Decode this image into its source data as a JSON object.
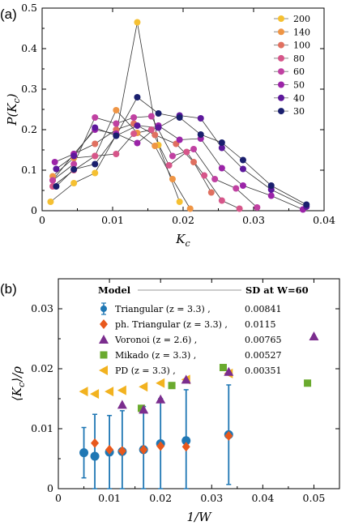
{
  "chart_data": [
    {
      "type": "line",
      "panel_label": "(a)",
      "xlabel": "K_c",
      "ylabel": "P(K_c)",
      "xlim": [
        0,
        0.04
      ],
      "ylim": [
        0,
        0.5
      ],
      "xticks": [
        "0",
        "0.01",
        "0.02",
        "0.03",
        "0.04"
      ],
      "yticks": [
        "0",
        "0.1",
        "0.2",
        "0.3",
        "0.4",
        "0.5"
      ],
      "legend_position": "top-right",
      "grid": false,
      "series": [
        {
          "name": "200",
          "color": "#f5c032",
          "x": [
            0.0012,
            0.0045,
            0.0075,
            0.0105,
            0.0135,
            0.0165,
            0.0195
          ],
          "y": [
            0.022,
            0.068,
            0.093,
            0.187,
            0.465,
            0.162,
            0.022
          ]
        },
        {
          "name": "140",
          "color": "#ef9545",
          "x": [
            0.0015,
            0.0045,
            0.0075,
            0.0105,
            0.0135,
            0.016,
            0.0185,
            0.021
          ],
          "y": [
            0.085,
            0.13,
            0.135,
            0.248,
            0.192,
            0.16,
            0.078,
            0.005
          ]
        },
        {
          "name": "100",
          "color": "#e07060",
          "x": [
            0.0015,
            0.0045,
            0.0075,
            0.0105,
            0.013,
            0.016,
            0.019,
            0.0215,
            0.024
          ],
          "y": [
            0.075,
            0.14,
            0.165,
            0.2,
            0.215,
            0.187,
            0.165,
            0.12,
            0.045
          ]
        },
        {
          "name": "80",
          "color": "#d6568a",
          "x": [
            0.0015,
            0.0045,
            0.0075,
            0.0105,
            0.013,
            0.0155,
            0.018,
            0.0205,
            0.023,
            0.0255,
            0.028
          ],
          "y": [
            0.06,
            0.1,
            0.135,
            0.14,
            0.19,
            0.2,
            0.112,
            0.145,
            0.087,
            0.025,
            0.005
          ]
        },
        {
          "name": "60",
          "color": "#c041a2",
          "x": [
            0.0015,
            0.0045,
            0.0075,
            0.0105,
            0.013,
            0.0155,
            0.0185,
            0.0215,
            0.0245,
            0.0275,
            0.0305
          ],
          "y": [
            0.075,
            0.115,
            0.23,
            0.215,
            0.23,
            0.233,
            0.135,
            0.152,
            0.078,
            0.055,
            0.008
          ]
        },
        {
          "name": "50",
          "color": "#9b24a8",
          "x": [
            0.0018,
            0.0045,
            0.0075,
            0.0105,
            0.0135,
            0.0165,
            0.0195,
            0.0225,
            0.0255,
            0.0285,
            0.0325,
            0.037
          ],
          "y": [
            0.12,
            0.14,
            0.2,
            0.19,
            0.167,
            0.21,
            0.175,
            0.178,
            0.105,
            0.062,
            0.037,
            0.003
          ]
        },
        {
          "name": "40",
          "color": "#5d189c",
          "x": [
            0.002,
            0.0045,
            0.0075,
            0.0105,
            0.0135,
            0.0165,
            0.0195,
            0.0225,
            0.0255,
            0.0285,
            0.0325,
            0.0375
          ],
          "y": [
            0.103,
            0.135,
            0.205,
            0.185,
            0.21,
            0.205,
            0.235,
            0.228,
            0.155,
            0.103,
            0.052,
            0.01
          ]
        },
        {
          "name": "30",
          "color": "#1a1f6e",
          "x": [
            0.002,
            0.0045,
            0.0075,
            0.0105,
            0.0135,
            0.0165,
            0.0195,
            0.0225,
            0.0255,
            0.0285,
            0.0325,
            0.0375
          ],
          "y": [
            0.06,
            0.102,
            0.115,
            0.185,
            0.28,
            0.24,
            0.23,
            0.188,
            0.168,
            0.125,
            0.062,
            0.015
          ]
        }
      ]
    },
    {
      "type": "scatter",
      "panel_label": "(b)",
      "xlabel": "1/W",
      "ylabel": "⟨K_c⟩/ρ",
      "xlim": [
        0,
        0.055
      ],
      "ylim": [
        0,
        0.035
      ],
      "xticks": [
        "0",
        "0.01",
        "0.02",
        "0.03",
        "0.04",
        "0.05"
      ],
      "yticks": [
        "0",
        "0.01",
        "0.02",
        "0.03"
      ],
      "legend_position": "top",
      "grid": false,
      "legend_header": {
        "left": "Model",
        "right": "SD at W=60"
      },
      "series": [
        {
          "name": "Triangular (z = 3.3) ,",
          "sd": "0.00841",
          "marker": "circle",
          "color": "#1f77b4",
          "x": [
            0.005,
            0.00714,
            0.01,
            0.0125,
            0.01667,
            0.02,
            0.025,
            0.03333
          ],
          "y": [
            0.006,
            0.0054,
            0.0061,
            0.0062,
            0.0065,
            0.0075,
            0.008,
            0.009
          ],
          "err": [
            0.0042,
            0.007,
            0.0061,
            0.0068,
            0.0072,
            0.0075,
            0.0085,
            0.0083
          ]
        },
        {
          "name": "ph. Triangular (z = 3.3) ,",
          "sd": "0.0115",
          "marker": "diamond",
          "color": "#e8581c",
          "x": [
            0.00714,
            0.01,
            0.0125,
            0.01667,
            0.02,
            0.025,
            0.03333
          ],
          "y": [
            0.0076,
            0.0065,
            0.0063,
            0.0065,
            0.0071,
            0.007,
            0.0088
          ]
        },
        {
          "name": "Voronoi (z = 2.6) ,",
          "sd": "0.00765",
          "marker": "triangle-up",
          "color": "#7b2d8e",
          "x": [
            0.0125,
            0.01667,
            0.02,
            0.025,
            0.03333,
            0.05
          ],
          "y": [
            0.014,
            0.0132,
            0.0149,
            0.0182,
            0.0195,
            0.0254
          ]
        },
        {
          "name": "Mikado (z = 3.3) ,",
          "sd": "0.00527",
          "marker": "square",
          "color": "#6aaa2e",
          "x": [
            0.01625,
            0.0222,
            0.03225,
            0.04875
          ],
          "y": [
            0.0134,
            0.0172,
            0.0202,
            0.0176
          ]
        },
        {
          "name": "PD (z = 3.3) ,",
          "sd": "0.00351",
          "marker": "triangle-left",
          "color": "#f2b21f",
          "x": [
            0.005,
            0.00714,
            0.01,
            0.0125,
            0.01667,
            0.02,
            0.025,
            0.03333
          ],
          "y": [
            0.0162,
            0.0158,
            0.0162,
            0.0164,
            0.017,
            0.0176,
            0.0182,
            0.0192
          ]
        }
      ]
    }
  ]
}
